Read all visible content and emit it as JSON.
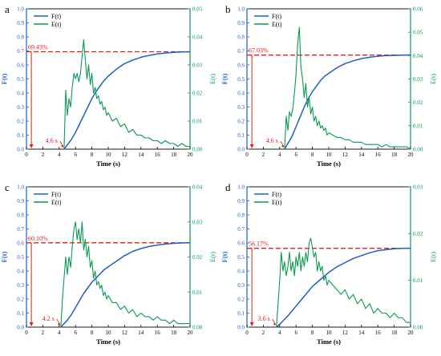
{
  "colors": {
    "F": "#1f5fc8",
    "E": "#0a9a50",
    "annot": "#e02020",
    "axis": "#000000"
  },
  "chart_data": [
    {
      "panel_label": "a",
      "type": "line",
      "xlabel": "Time (s)",
      "ylabel_left": "F(t)",
      "ylabel_right": "E(t)",
      "xlim": [
        0,
        20
      ],
      "ylim_left": [
        0,
        1.0
      ],
      "ylim_right": [
        0,
        0.05
      ],
      "xticks": [
        0,
        2,
        4,
        6,
        8,
        10,
        12,
        14,
        16,
        18,
        20
      ],
      "yticks_left": [
        0,
        0.1,
        0.2,
        0.3,
        0.4,
        0.5,
        0.6,
        0.7,
        0.8,
        0.9,
        1.0
      ],
      "yticks_right": [
        0,
        0.01,
        0.02,
        0.03,
        0.04,
        0.05
      ],
      "ytick_labels_left": [
        "0.0",
        "0.1",
        "0.2",
        "0.3",
        "0.4",
        "0.5",
        "0.6",
        "0.7",
        "0.8",
        "0.9",
        "1.0"
      ],
      "ytick_labels_right": [
        "0.00",
        "0.01",
        "0.02",
        "0.03",
        "0.04",
        "0.05"
      ],
      "legend": [
        "F(t)",
        "E(t)"
      ],
      "legend_position": "top-left",
      "annotation_pct": "69.43%",
      "annotation_pct_value": 0.6943,
      "annotation_time": "4.6 s",
      "annotation_time_value": 4.6,
      "series": [
        {
          "name": "F(t)",
          "axis": "left",
          "x": [
            4.6,
            5,
            5.5,
            6,
            6.5,
            7,
            7.5,
            8,
            8.5,
            9,
            9.5,
            10,
            11,
            12,
            13,
            14,
            15,
            16,
            17,
            18,
            19,
            20
          ],
          "y": [
            0,
            0.03,
            0.07,
            0.12,
            0.18,
            0.24,
            0.3,
            0.36,
            0.41,
            0.45,
            0.49,
            0.52,
            0.57,
            0.61,
            0.635,
            0.655,
            0.668,
            0.678,
            0.685,
            0.69,
            0.693,
            0.694
          ]
        },
        {
          "name": "E(t)",
          "axis": "right",
          "x": [
            4.6,
            4.8,
            5.0,
            5.2,
            5.4,
            5.6,
            5.8,
            6.0,
            6.2,
            6.4,
            6.6,
            6.8,
            7.0,
            7.2,
            7.4,
            7.6,
            7.8,
            8.0,
            8.2,
            8.4,
            8.6,
            8.8,
            9.0,
            9.2,
            9.4,
            9.6,
            9.8,
            10,
            10.5,
            11,
            11.5,
            12,
            12.5,
            13,
            13.5,
            14,
            14.5,
            15,
            15.5,
            16,
            16.5,
            17,
            17.5,
            18,
            18.5,
            19,
            19.5,
            20
          ],
          "y": [
            0,
            0.021,
            0.012,
            0.018,
            0.015,
            0.022,
            0.027,
            0.025,
            0.027,
            0.024,
            0.027,
            0.033,
            0.039,
            0.032,
            0.025,
            0.03,
            0.023,
            0.027,
            0.02,
            0.022,
            0.018,
            0.019,
            0.016,
            0.017,
            0.014,
            0.015,
            0.012,
            0.013,
            0.01,
            0.011,
            0.008,
            0.009,
            0.006,
            0.007,
            0.005,
            0.005,
            0.004,
            0.004,
            0.003,
            0.003,
            0.002,
            0.003,
            0.002,
            0.002,
            0.001,
            0.002,
            0.001,
            0.001
          ]
        }
      ]
    },
    {
      "panel_label": "b",
      "type": "line",
      "xlabel": "Time (s)",
      "ylabel_left": "F(t)",
      "ylabel_right": "E(t)",
      "xlim": [
        0,
        20
      ],
      "ylim_left": [
        0,
        1.0
      ],
      "ylim_right": [
        0,
        0.06
      ],
      "xticks": [
        0,
        2,
        4,
        6,
        8,
        10,
        12,
        14,
        16,
        18,
        20
      ],
      "yticks_left": [
        0,
        0.1,
        0.2,
        0.3,
        0.4,
        0.5,
        0.6,
        0.7,
        0.8,
        0.9,
        1.0
      ],
      "yticks_right": [
        0,
        0.01,
        0.02,
        0.03,
        0.04,
        0.05,
        0.06
      ],
      "ytick_labels_left": [
        "0.0",
        "0.1",
        "0.2",
        "0.3",
        "0.4",
        "0.5",
        "0.6",
        "0.7",
        "0.8",
        "0.9",
        "1.0"
      ],
      "ytick_labels_right": [
        "0.00",
        "0.01",
        "0.02",
        "0.03",
        "0.04",
        "0.05",
        "0.06"
      ],
      "legend": [
        "F(t)",
        "E(t)"
      ],
      "legend_position": "top-left",
      "annotation_pct": "67.03%",
      "annotation_pct_value": 0.6703,
      "annotation_time": "4.6 s",
      "annotation_time_value": 4.6,
      "series": [
        {
          "name": "F(t)",
          "axis": "left",
          "x": [
            4.6,
            5,
            5.5,
            6,
            6.5,
            7,
            7.5,
            8,
            8.5,
            9,
            9.5,
            10,
            11,
            12,
            13,
            14,
            15,
            16,
            17,
            18,
            19,
            20
          ],
          "y": [
            0,
            0.04,
            0.09,
            0.16,
            0.23,
            0.3,
            0.36,
            0.41,
            0.45,
            0.49,
            0.52,
            0.54,
            0.58,
            0.61,
            0.63,
            0.645,
            0.655,
            0.662,
            0.666,
            0.668,
            0.67,
            0.671
          ]
        },
        {
          "name": "E(t)",
          "axis": "right",
          "x": [
            4.6,
            4.8,
            5.0,
            5.2,
            5.4,
            5.6,
            5.8,
            6.0,
            6.2,
            6.4,
            6.6,
            6.8,
            7.0,
            7.2,
            7.4,
            7.6,
            7.8,
            8.0,
            8.2,
            8.4,
            8.6,
            8.8,
            9.0,
            9.2,
            9.4,
            9.6,
            9.8,
            10,
            10.5,
            11,
            11.5,
            12,
            12.5,
            13,
            13.5,
            14,
            14.5,
            15,
            15.5,
            16,
            16.5,
            17,
            17.5,
            18,
            18.5,
            19,
            19.5,
            20
          ],
          "y": [
            0,
            0.014,
            0.008,
            0.016,
            0.014,
            0.017,
            0.024,
            0.032,
            0.045,
            0.052,
            0.035,
            0.03,
            0.022,
            0.028,
            0.018,
            0.022,
            0.015,
            0.018,
            0.012,
            0.014,
            0.01,
            0.012,
            0.009,
            0.01,
            0.008,
            0.009,
            0.006,
            0.007,
            0.006,
            0.005,
            0.005,
            0.004,
            0.004,
            0.003,
            0.003,
            0.003,
            0.002,
            0.002,
            0.002,
            0.002,
            0.001,
            0.002,
            0.001,
            0.001,
            0.001,
            0.001,
            0.001,
            0
          ]
        }
      ]
    },
    {
      "panel_label": "c",
      "type": "line",
      "xlabel": "Time (s)",
      "ylabel_left": "F(t)",
      "ylabel_right": "E(t)",
      "xlim": [
        0,
        20
      ],
      "ylim_left": [
        0,
        1.0
      ],
      "ylim_right": [
        0,
        0.04
      ],
      "xticks": [
        0,
        2,
        4,
        6,
        8,
        10,
        12,
        14,
        16,
        18,
        20
      ],
      "yticks_left": [
        0,
        0.1,
        0.2,
        0.3,
        0.4,
        0.5,
        0.6,
        0.7,
        0.8,
        0.9,
        1.0
      ],
      "yticks_right": [
        0,
        0.01,
        0.02,
        0.03,
        0.04
      ],
      "ytick_labels_left": [
        "0.0",
        "0.1",
        "0.2",
        "0.3",
        "0.4",
        "0.5",
        "0.6",
        "0.7",
        "0.8",
        "0.9",
        "1.0"
      ],
      "ytick_labels_right": [
        "0.00",
        "0.01",
        "0.02",
        "0.03",
        "0.04"
      ],
      "legend": [
        "F(t)",
        "E(t)"
      ],
      "legend_position": "top-left",
      "annotation_pct": "60.10%",
      "annotation_pct_value": 0.601,
      "annotation_time": "4.2 s",
      "annotation_time_value": 4.2,
      "series": [
        {
          "name": "F(t)",
          "axis": "left",
          "x": [
            4.2,
            5,
            5.5,
            6,
            6.5,
            7,
            7.5,
            8,
            8.5,
            9,
            9.5,
            10,
            11,
            12,
            13,
            14,
            15,
            16,
            17,
            18,
            19,
            20
          ],
          "y": [
            0,
            0.05,
            0.09,
            0.14,
            0.19,
            0.24,
            0.28,
            0.32,
            0.35,
            0.38,
            0.41,
            0.43,
            0.47,
            0.51,
            0.54,
            0.56,
            0.575,
            0.585,
            0.592,
            0.597,
            0.6,
            0.601
          ]
        },
        {
          "name": "E(t)",
          "axis": "right",
          "x": [
            4.2,
            4.4,
            4.6,
            4.8,
            5.0,
            5.2,
            5.4,
            5.6,
            5.8,
            6.0,
            6.2,
            6.4,
            6.6,
            6.8,
            7.0,
            7.2,
            7.4,
            7.6,
            7.8,
            8.0,
            8.2,
            8.4,
            8.6,
            8.8,
            9.0,
            9.2,
            9.4,
            9.6,
            9.8,
            10,
            10.5,
            11,
            11.5,
            12,
            12.5,
            13,
            13.5,
            14,
            14.5,
            15,
            15.5,
            16,
            16.5,
            17,
            17.5,
            18,
            18.5,
            19,
            19.5,
            20
          ],
          "y": [
            0,
            0.008,
            0.014,
            0.02,
            0.015,
            0.02,
            0.017,
            0.023,
            0.028,
            0.03,
            0.025,
            0.028,
            0.024,
            0.03,
            0.022,
            0.025,
            0.02,
            0.023,
            0.017,
            0.019,
            0.014,
            0.016,
            0.012,
            0.013,
            0.011,
            0.012,
            0.009,
            0.01,
            0.008,
            0.009,
            0.007,
            0.007,
            0.005,
            0.006,
            0.004,
            0.005,
            0.003,
            0.004,
            0.003,
            0.003,
            0.002,
            0.003,
            0.002,
            0.002,
            0.001,
            0.002,
            0.001,
            0.001,
            0.001,
            0.001
          ]
        }
      ]
    },
    {
      "panel_label": "d",
      "type": "line",
      "xlabel": "Time (s)",
      "ylabel_left": "F(t)",
      "ylabel_right": "E(t)",
      "xlim": [
        0,
        20
      ],
      "ylim_left": [
        0,
        1.0
      ],
      "ylim_right": [
        0,
        0.03
      ],
      "xticks": [
        0,
        2,
        4,
        6,
        8,
        10,
        12,
        14,
        16,
        18,
        20
      ],
      "yticks_left": [
        0,
        0.1,
        0.2,
        0.3,
        0.4,
        0.5,
        0.6,
        0.7,
        0.8,
        0.9,
        1.0
      ],
      "yticks_right": [
        0,
        0.01,
        0.02,
        0.03
      ],
      "ytick_labels_left": [
        "0.0",
        "0.1",
        "0.2",
        "0.3",
        "0.4",
        "0.5",
        "0.6",
        "0.7",
        "0.8",
        "0.9",
        "1.0"
      ],
      "ytick_labels_right": [
        "0.00",
        "0.01",
        "0.02",
        "0.03"
      ],
      "legend": [
        "F(t)",
        "E(t)"
      ],
      "legend_position": "top-left",
      "annotation_pct": "56.17%",
      "annotation_pct_value": 0.5617,
      "annotation_time": "3.6 s",
      "annotation_time_value": 3.6,
      "series": [
        {
          "name": "F(t)",
          "axis": "left",
          "x": [
            3.6,
            4,
            5,
            6,
            7,
            8,
            9,
            10,
            11,
            12,
            13,
            14,
            15,
            16,
            17,
            18,
            19,
            20
          ],
          "y": [
            0,
            0.02,
            0.08,
            0.15,
            0.22,
            0.29,
            0.34,
            0.39,
            0.43,
            0.46,
            0.49,
            0.51,
            0.53,
            0.545,
            0.552,
            0.558,
            0.561,
            0.562
          ]
        },
        {
          "name": "E(t)",
          "axis": "right",
          "x": [
            3.6,
            3.8,
            4.0,
            4.2,
            4.4,
            4.6,
            4.8,
            5.0,
            5.2,
            5.4,
            5.6,
            5.8,
            6.0,
            6.2,
            6.4,
            6.6,
            6.8,
            7.0,
            7.2,
            7.4,
            7.6,
            7.8,
            8.0,
            8.2,
            8.4,
            8.6,
            8.8,
            9.0,
            9.2,
            9.4,
            9.6,
            9.8,
            10,
            10.5,
            11,
            11.5,
            12,
            12.5,
            13,
            13.5,
            14,
            14.5,
            15,
            15.5,
            16,
            16.5,
            17,
            17.5,
            18,
            18.5,
            19,
            19.5,
            20
          ],
          "y": [
            0,
            0.005,
            0.01,
            0.016,
            0.012,
            0.014,
            0.011,
            0.013,
            0.016,
            0.012,
            0.014,
            0.011,
            0.015,
            0.013,
            0.016,
            0.012,
            0.015,
            0.013,
            0.016,
            0.014,
            0.018,
            0.019,
            0.017,
            0.015,
            0.016,
            0.012,
            0.014,
            0.012,
            0.013,
            0.01,
            0.011,
            0.009,
            0.01,
            0.009,
            0.008,
            0.007,
            0.008,
            0.006,
            0.007,
            0.005,
            0.006,
            0.004,
            0.005,
            0.003,
            0.004,
            0.003,
            0.003,
            0.002,
            0.003,
            0.002,
            0.002,
            0.001,
            0.001
          ]
        }
      ]
    }
  ]
}
